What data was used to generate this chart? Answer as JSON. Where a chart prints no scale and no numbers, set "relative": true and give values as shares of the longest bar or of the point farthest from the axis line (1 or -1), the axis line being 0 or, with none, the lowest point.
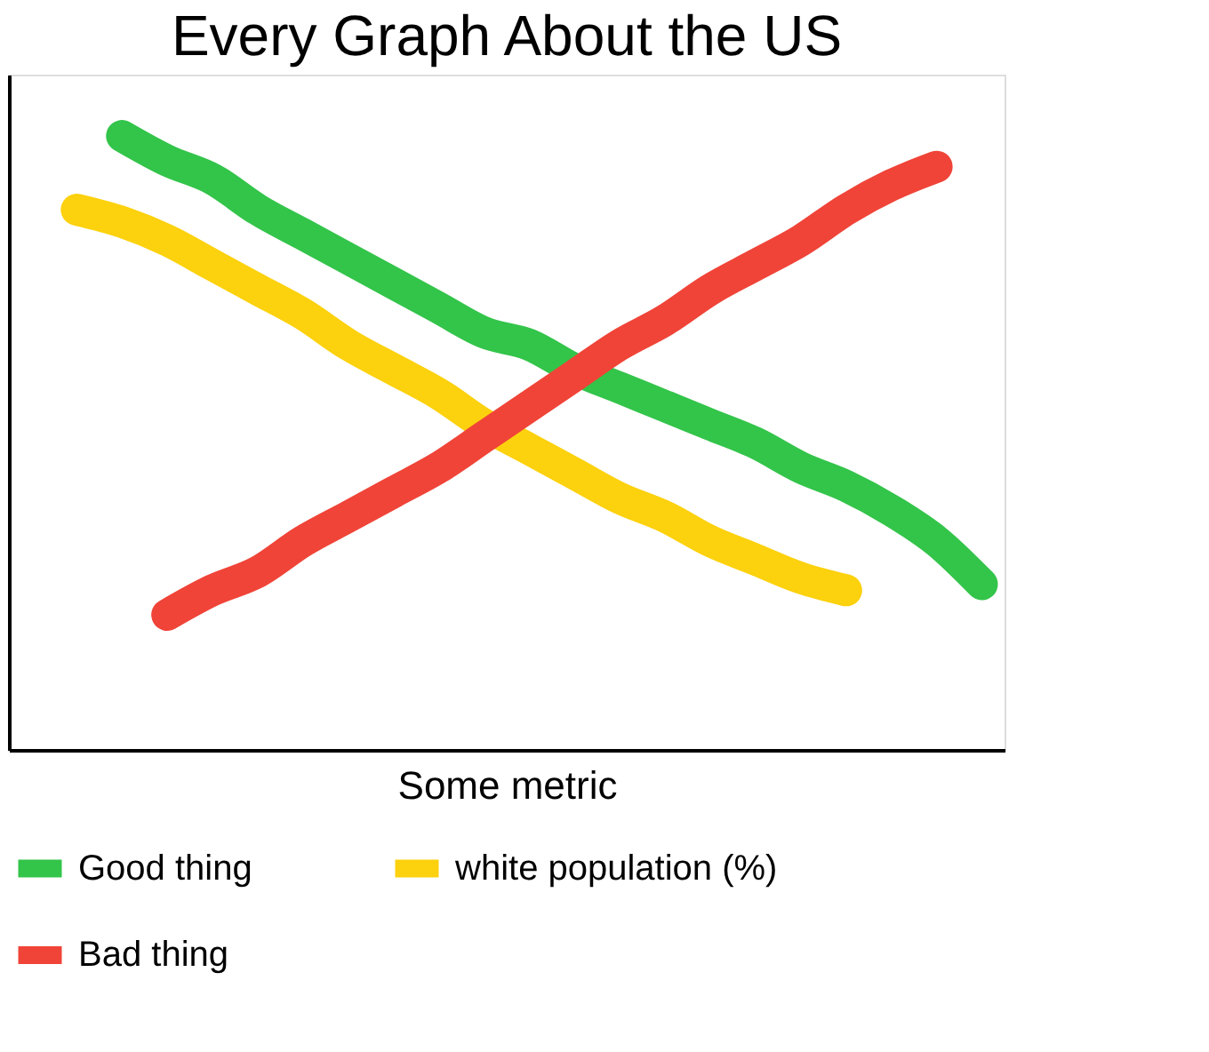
{
  "chart_data": {
    "type": "line",
    "title": "Every Graph About the US",
    "xlabel": "Some metric",
    "relative": true,
    "tick_labels": false,
    "grid": false,
    "legend": "bottom",
    "categories": [
      null,
      null,
      null,
      null,
      null,
      null,
      null,
      null,
      null,
      null,
      null,
      null,
      null,
      null,
      null,
      null,
      null,
      null,
      null,
      null,
      null
    ],
    "series": [
      {
        "name": "Good thing",
        "color": "#33c44a",
        "values": [
          null,
          1.0,
          0.96,
          0.93,
          0.88,
          0.84,
          0.8,
          0.76,
          0.72,
          0.68,
          0.66,
          0.62,
          0.59,
          0.56,
          0.53,
          0.5,
          0.46,
          0.43,
          0.39,
          0.34,
          0.27
        ]
      },
      {
        "name": "white population (%)",
        "color": "#fcd10d",
        "values": [
          0.88,
          0.86,
          0.83,
          0.79,
          0.75,
          0.71,
          0.66,
          0.62,
          0.58,
          0.53,
          0.49,
          0.45,
          0.41,
          0.38,
          0.34,
          0.31,
          0.28,
          0.26,
          null,
          null,
          null
        ]
      },
      {
        "name": "Bad thing",
        "color": "#f04438",
        "values": [
          null,
          null,
          0.22,
          0.26,
          0.29,
          0.34,
          0.38,
          0.42,
          0.46,
          0.51,
          0.56,
          0.61,
          0.66,
          0.7,
          0.75,
          0.79,
          0.83,
          0.88,
          0.92,
          0.95,
          null
        ]
      }
    ]
  }
}
